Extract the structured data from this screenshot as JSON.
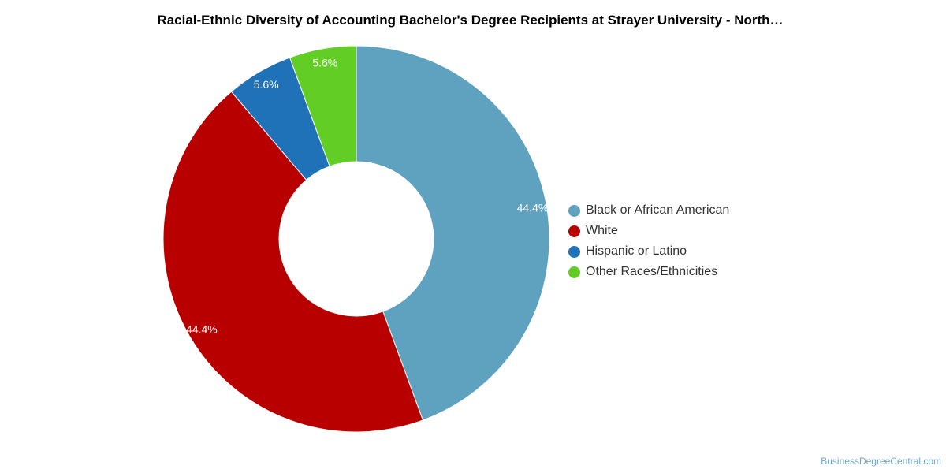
{
  "chart_data": {
    "type": "pie",
    "title": "Racial-Ethnic Diversity of Accounting Bachelor's Degree Recipients at Strayer University - North…",
    "donut": true,
    "legend_position": "right",
    "categories": [
      "Black or African American",
      "White",
      "Hispanic or Latino",
      "Other Races/Ethnicities"
    ],
    "values": [
      44.4,
      44.4,
      5.6,
      5.6
    ],
    "labels": [
      "44.4%",
      "44.4%",
      "5.6%",
      "5.6%"
    ],
    "colors": [
      "#5ea2bf",
      "#b90000",
      "#1f72b8",
      "#62cd25"
    ]
  },
  "credit": "BusinessDegreeCentral.com"
}
